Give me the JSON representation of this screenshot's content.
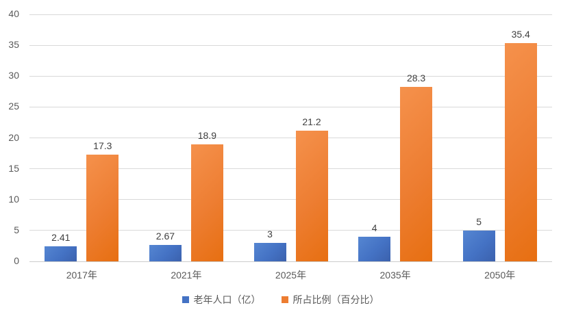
{
  "chart_data": {
    "type": "bar",
    "categories": [
      "2017年",
      "2021年",
      "2025年",
      "2035年",
      "2050年"
    ],
    "series": [
      {
        "name": "老年人口（亿）",
        "color": "#4472C4",
        "values": [
          2.41,
          2.67,
          3,
          4,
          5
        ],
        "labels": [
          "2.41",
          "2.67",
          "3",
          "4",
          "5"
        ]
      },
      {
        "name": "所占比例（百分比）",
        "color": "#ED7D31",
        "values": [
          17.3,
          18.9,
          21.2,
          28.3,
          35.4
        ],
        "labels": [
          "17.3",
          "18.9",
          "21.2",
          "28.3",
          "35.4"
        ]
      }
    ],
    "title": "",
    "xlabel": "",
    "ylabel": "",
    "ylim": [
      0,
      40
    ],
    "ytick_step": 5,
    "yticks": [
      "0",
      "5",
      "10",
      "15",
      "20",
      "25",
      "30",
      "35",
      "40"
    ],
    "grid": true,
    "legend_position": "bottom"
  }
}
